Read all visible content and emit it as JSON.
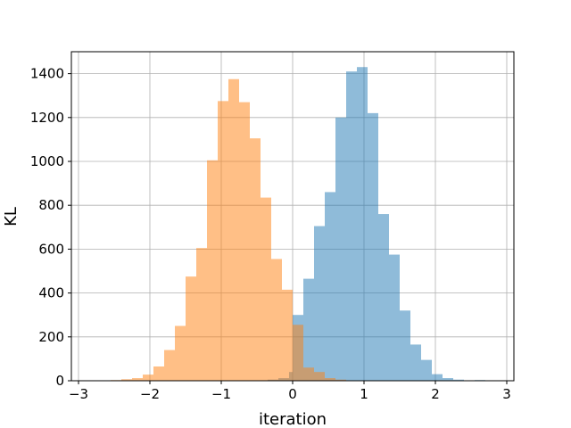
{
  "chart_data": {
    "type": "bar",
    "subtype": "overlaid-histogram",
    "title": "",
    "xlabel": "iteration",
    "ylabel": "KL",
    "xlim": [
      -3.1,
      3.1
    ],
    "ylim": [
      0,
      1500
    ],
    "xticks": [
      -3,
      -2,
      -1,
      0,
      1,
      2,
      3
    ],
    "xtick_labels": [
      "−3",
      "−2",
      "−1",
      "0",
      "1",
      "2",
      "3"
    ],
    "yticks": [
      0,
      200,
      400,
      600,
      800,
      1000,
      1200,
      1400
    ],
    "ytick_labels": [
      "0",
      "200",
      "400",
      "600",
      "800",
      "1000",
      "1200",
      "1400"
    ],
    "grid": true,
    "legend": "none",
    "series": [
      {
        "color": "#1f77b4",
        "opacity": 0.5,
        "bins": [
          {
            "x0": -0.5,
            "x1": -0.35,
            "value": 1
          },
          {
            "x0": -0.35,
            "x1": -0.2,
            "value": 5
          },
          {
            "x0": -0.2,
            "x1": -0.05,
            "value": 12
          },
          {
            "x0": -0.05,
            "x1": 0.0,
            "value": 40
          },
          {
            "x0": 0.0,
            "x1": 0.15,
            "value": 300
          },
          {
            "x0": 0.15,
            "x1": 0.3,
            "value": 465
          },
          {
            "x0": 0.3,
            "x1": 0.45,
            "value": 705
          },
          {
            "x0": 0.45,
            "x1": 0.6,
            "value": 860
          },
          {
            "x0": 0.6,
            "x1": 0.75,
            "value": 1200
          },
          {
            "x0": 0.75,
            "x1": 0.9,
            "value": 1410
          },
          {
            "x0": 0.9,
            "x1": 1.05,
            "value": 1430
          },
          {
            "x0": 1.05,
            "x1": 1.2,
            "value": 1220
          },
          {
            "x0": 1.2,
            "x1": 1.35,
            "value": 760
          },
          {
            "x0": 1.35,
            "x1": 1.5,
            "value": 575
          },
          {
            "x0": 1.5,
            "x1": 1.65,
            "value": 320
          },
          {
            "x0": 1.65,
            "x1": 1.8,
            "value": 165
          },
          {
            "x0": 1.8,
            "x1": 1.95,
            "value": 95
          },
          {
            "x0": 1.95,
            "x1": 2.1,
            "value": 30
          },
          {
            "x0": 2.1,
            "x1": 2.25,
            "value": 12
          },
          {
            "x0": 2.25,
            "x1": 2.4,
            "value": 5
          },
          {
            "x0": 2.55,
            "x1": 2.7,
            "value": 3
          }
        ]
      },
      {
        "color": "#ff7f0e",
        "opacity": 0.5,
        "bins": [
          {
            "x0": -2.7,
            "x1": -2.55,
            "value": 1
          },
          {
            "x0": -2.55,
            "x1": -2.4,
            "value": 3
          },
          {
            "x0": -2.4,
            "x1": -2.25,
            "value": 7
          },
          {
            "x0": -2.25,
            "x1": -2.1,
            "value": 12
          },
          {
            "x0": -2.1,
            "x1": -1.95,
            "value": 28
          },
          {
            "x0": -1.95,
            "x1": -1.8,
            "value": 65
          },
          {
            "x0": -1.8,
            "x1": -1.65,
            "value": 140
          },
          {
            "x0": -1.65,
            "x1": -1.5,
            "value": 250
          },
          {
            "x0": -1.5,
            "x1": -1.35,
            "value": 475
          },
          {
            "x0": -1.35,
            "x1": -1.2,
            "value": 605
          },
          {
            "x0": -1.2,
            "x1": -1.05,
            "value": 1005
          },
          {
            "x0": -1.05,
            "x1": -0.9,
            "value": 1275
          },
          {
            "x0": -0.9,
            "x1": -0.75,
            "value": 1375
          },
          {
            "x0": -0.75,
            "x1": -0.6,
            "value": 1270
          },
          {
            "x0": -0.6,
            "x1": -0.45,
            "value": 1105
          },
          {
            "x0": -0.45,
            "x1": -0.3,
            "value": 835
          },
          {
            "x0": -0.3,
            "x1": -0.15,
            "value": 555
          },
          {
            "x0": -0.15,
            "x1": 0.0,
            "value": 415
          },
          {
            "x0": 0.0,
            "x1": 0.15,
            "value": 255
          },
          {
            "x0": 0.15,
            "x1": 0.3,
            "value": 60
          },
          {
            "x0": 0.3,
            "x1": 0.45,
            "value": 40
          },
          {
            "x0": 0.45,
            "x1": 0.6,
            "value": 12
          },
          {
            "x0": 0.6,
            "x1": 0.75,
            "value": 5
          },
          {
            "x0": 0.75,
            "x1": 0.9,
            "value": 2
          },
          {
            "x0": 0.9,
            "x1": 1.05,
            "value": 1
          }
        ]
      }
    ]
  }
}
